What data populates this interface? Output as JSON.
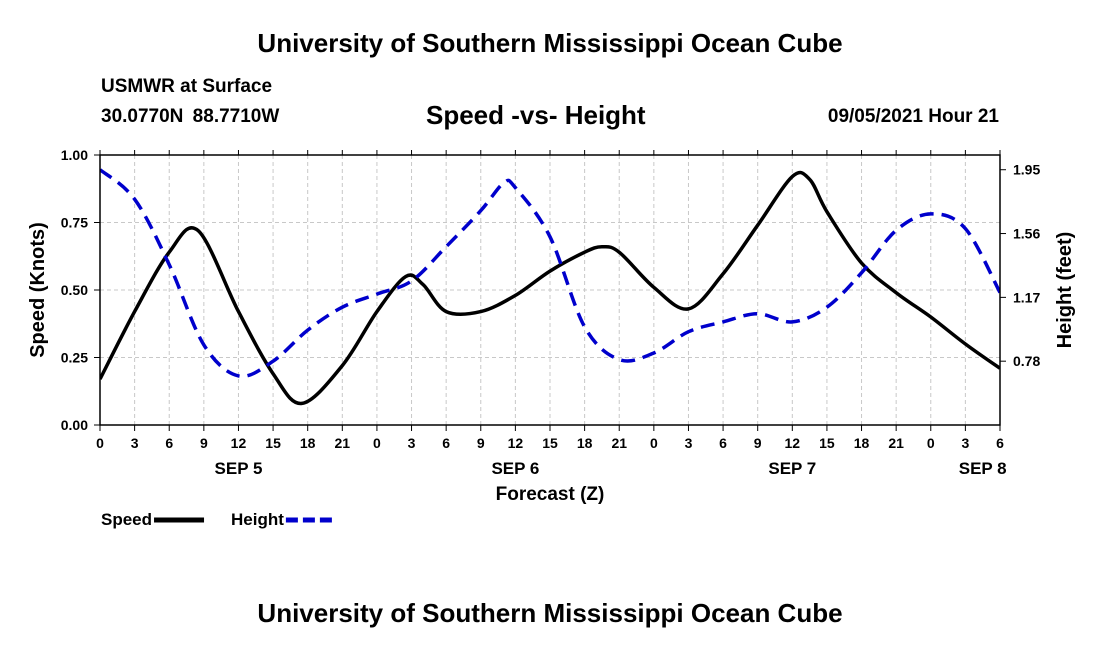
{
  "header": {
    "title": "University of Southern Mississippi Ocean Cube",
    "station_name": "USMWR at Surface",
    "coordinates": "30.0770N  88.7710W",
    "chart_title": "Speed -vs- Height",
    "datetime": "09/05/2021 Hour 21"
  },
  "footer": {
    "title": "University of Southern Mississippi Ocean Cube"
  },
  "chart_data": {
    "type": "line",
    "title": "Speed -vs- Height",
    "xlabel": "Forecast (Z)",
    "ylabel": "Speed (Knots)",
    "y2label": "Height (feet)",
    "x_range_hours": [
      0,
      78
    ],
    "x_tick_labels": [
      "0",
      "3",
      "6",
      "9",
      "12",
      "15",
      "18",
      "21",
      "0",
      "3",
      "6",
      "9",
      "12",
      "15",
      "18",
      "21",
      "0",
      "3",
      "6",
      "9",
      "12",
      "15",
      "18",
      "21",
      "0",
      "3",
      "6"
    ],
    "day_labels": [
      {
        "label": "SEP 5",
        "hour": 12
      },
      {
        "label": "SEP 6",
        "hour": 36
      },
      {
        "label": "SEP 7",
        "hour": 60
      },
      {
        "label": "SEP 8",
        "hour": 76.5
      }
    ],
    "ylim": [
      0,
      1.0
    ],
    "y_ticks": [
      "0.00",
      "0.25",
      "0.50",
      "0.75",
      "1.00"
    ],
    "y2lim": [
      0.39,
      2.04
    ],
    "y2_ticks": [
      "0.78",
      "1.17",
      "1.56",
      "1.95"
    ],
    "grid": true,
    "legend": {
      "position": "bottom-left",
      "entries": [
        "Speed",
        "Height"
      ]
    },
    "series": [
      {
        "name": "Speed",
        "axis": "left",
        "color": "#000000",
        "dash": "solid",
        "x": [
          0,
          3,
          6,
          8.5,
          12,
          15,
          17.5,
          21,
          24,
          26.5,
          28,
          30,
          33,
          36,
          39,
          42,
          43.5,
          45,
          48,
          51,
          54,
          57,
          60,
          61.5,
          63,
          66,
          69,
          72,
          75,
          78
        ],
        "values": [
          0.17,
          0.42,
          0.64,
          0.72,
          0.42,
          0.19,
          0.08,
          0.22,
          0.42,
          0.55,
          0.52,
          0.42,
          0.42,
          0.48,
          0.57,
          0.64,
          0.66,
          0.64,
          0.51,
          0.43,
          0.56,
          0.74,
          0.92,
          0.91,
          0.79,
          0.6,
          0.49,
          0.4,
          0.3,
          0.21
        ]
      },
      {
        "name": "Height",
        "axis": "right",
        "color": "#0000cc",
        "dash": "dashed",
        "x": [
          0,
          3,
          6,
          9,
          12,
          15,
          18,
          21,
          24,
          27,
          30,
          33,
          35,
          36,
          39,
          42,
          45,
          48,
          51,
          54,
          57,
          60,
          63,
          66,
          69,
          72,
          75,
          78
        ],
        "values": [
          1.95,
          1.77,
          1.37,
          0.88,
          0.69,
          0.78,
          0.97,
          1.11,
          1.19,
          1.27,
          1.48,
          1.7,
          1.87,
          1.84,
          1.54,
          0.99,
          0.79,
          0.83,
          0.96,
          1.02,
          1.07,
          1.02,
          1.11,
          1.32,
          1.58,
          1.68,
          1.59,
          1.2
        ]
      }
    ]
  }
}
